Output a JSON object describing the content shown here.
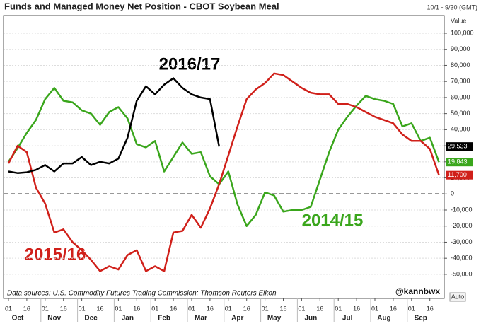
{
  "chart_data": {
    "type": "line",
    "title": "Funds and Managed Money Net Position - CBOT Soybean Meal",
    "date_range": "10/1 - 9/30 (GMT)",
    "axis_label": "Value",
    "categories": [
      "01",
      null,
      "16",
      null,
      "01",
      null,
      "16",
      null,
      "01",
      null,
      "16",
      null,
      "01",
      null,
      "16",
      null,
      "01",
      null,
      "16",
      null,
      "01",
      null,
      "16",
      null,
      "01",
      null,
      "16",
      null,
      "01",
      null,
      "16",
      null,
      "01",
      null,
      "16",
      null,
      "01",
      null,
      "16",
      null,
      "01",
      null,
      "16",
      null,
      "01",
      null,
      "16",
      null
    ],
    "months": [
      "Oct",
      "Nov",
      "Dec",
      "Jan",
      "Feb",
      "Mar",
      "Apr",
      "May",
      "Jun",
      "Jul",
      "Aug",
      "Sep"
    ],
    "series": [
      {
        "name": "2014/15",
        "color": "#3aa61c",
        "values": [
          20000,
          28600,
          38000,
          46000,
          59000,
          66000,
          58000,
          57000,
          52000,
          50000,
          43000,
          51000,
          54000,
          47000,
          31000,
          29000,
          33000,
          14000,
          23000,
          32000,
          25000,
          26000,
          11000,
          6000,
          14000,
          -6600,
          -20000,
          -13000,
          1000,
          -1000,
          -11000,
          -10000,
          -10000,
          -8000,
          9000,
          26000,
          40000,
          48000,
          55000,
          61000,
          59000,
          58000,
          56000,
          42000,
          44000,
          33000,
          35000,
          19843
        ],
        "value_labels": [
          null,
          null,
          null,
          null,
          null,
          null,
          null,
          null,
          null,
          null,
          null,
          null,
          null,
          null,
          null,
          null,
          null,
          null,
          null,
          null,
          null,
          null,
          null,
          null,
          null,
          null,
          null,
          null,
          null,
          null,
          null,
          null,
          null,
          null,
          null,
          null,
          null,
          null,
          null,
          null,
          null,
          null,
          null,
          null,
          null,
          null,
          null,
          "19,843"
        ]
      },
      {
        "name": "2015/16",
        "color": "#d0201a",
        "values": [
          19000,
          30000,
          26000,
          4000,
          -6000,
          -24000,
          -22000,
          -30000,
          -35000,
          -41000,
          -48000,
          -45000,
          -47000,
          -38000,
          -35000,
          -48000,
          -45000,
          -48000,
          -24000,
          -23000,
          -13000,
          -21000,
          -9000,
          6000,
          24000,
          42000,
          59000,
          65000,
          69000,
          75000,
          74000,
          70000,
          66000,
          63000,
          62000,
          62000,
          56000,
          56000,
          54000,
          51000,
          48000,
          46000,
          44000,
          37000,
          33000,
          33000,
          28000,
          11700
        ],
        "value_labels": [
          null,
          null,
          null,
          null,
          null,
          null,
          null,
          null,
          null,
          null,
          null,
          null,
          null,
          null,
          null,
          null,
          null,
          null,
          null,
          null,
          null,
          null,
          null,
          null,
          null,
          null,
          null,
          null,
          null,
          null,
          null,
          null,
          null,
          null,
          null,
          null,
          null,
          null,
          null,
          null,
          null,
          null,
          null,
          null,
          null,
          null,
          null,
          "11,700"
        ]
      },
      {
        "name": "2016/17",
        "color": "#000000",
        "values": [
          14000,
          13000,
          13500,
          15000,
          18000,
          14000,
          19000,
          19000,
          23000,
          18000,
          20000,
          19000,
          22000,
          35000,
          58000,
          67000,
          62000,
          68000,
          72000,
          66000,
          62000,
          60000,
          59000,
          29533,
          null,
          null,
          null,
          null,
          null,
          null,
          null,
          null,
          null,
          null,
          null,
          null,
          null,
          null,
          null,
          null,
          null,
          null,
          null,
          null,
          null,
          null,
          null,
          null
        ],
        "value_labels": [
          null,
          null,
          null,
          null,
          null,
          null,
          null,
          null,
          null,
          null,
          null,
          null,
          null,
          null,
          null,
          null,
          null,
          null,
          null,
          null,
          null,
          null,
          null,
          "29,533",
          null,
          null,
          null,
          null,
          null,
          null,
          null,
          null,
          null,
          null,
          null,
          null,
          null,
          null,
          null,
          null,
          null,
          null,
          null,
          null,
          null,
          null,
          null,
          null
        ]
      }
    ],
    "ylim": [
      -65000,
      111000
    ],
    "yticks": [
      {
        "value": -50000,
        "label": "-50,000"
      },
      {
        "value": -40000,
        "label": "-40,000"
      },
      {
        "value": -30000,
        "label": "-30,000"
      },
      {
        "value": -20000,
        "label": "-20,000"
      },
      {
        "value": -10000,
        "label": "-10,000"
      },
      0,
      {
        "value": 10000,
        "label": "10,000"
      },
      {
        "value": 20000,
        "label": "20,000"
      },
      {
        "value": 30000,
        "label": "30,000"
      },
      {
        "value": 40000,
        "label": "40,000"
      },
      {
        "value": 50000,
        "label": "50,000"
      },
      {
        "value": 60000,
        "label": "60,000"
      },
      {
        "value": 70000,
        "label": "70,000"
      },
      {
        "value": 80000,
        "label": "80,000"
      },
      {
        "value": 90000,
        "label": "90,000"
      },
      {
        "value": 100000,
        "label": "100,000"
      }
    ],
    "grid": true,
    "season_labels": [
      "2016/17",
      "2015/16",
      "2014/15"
    ],
    "source": "Data sources: U.S. Commodity Futures Trading Commission; Thomson Reuters Eikon",
    "handle": "@kannbwx",
    "button": "Auto"
  }
}
